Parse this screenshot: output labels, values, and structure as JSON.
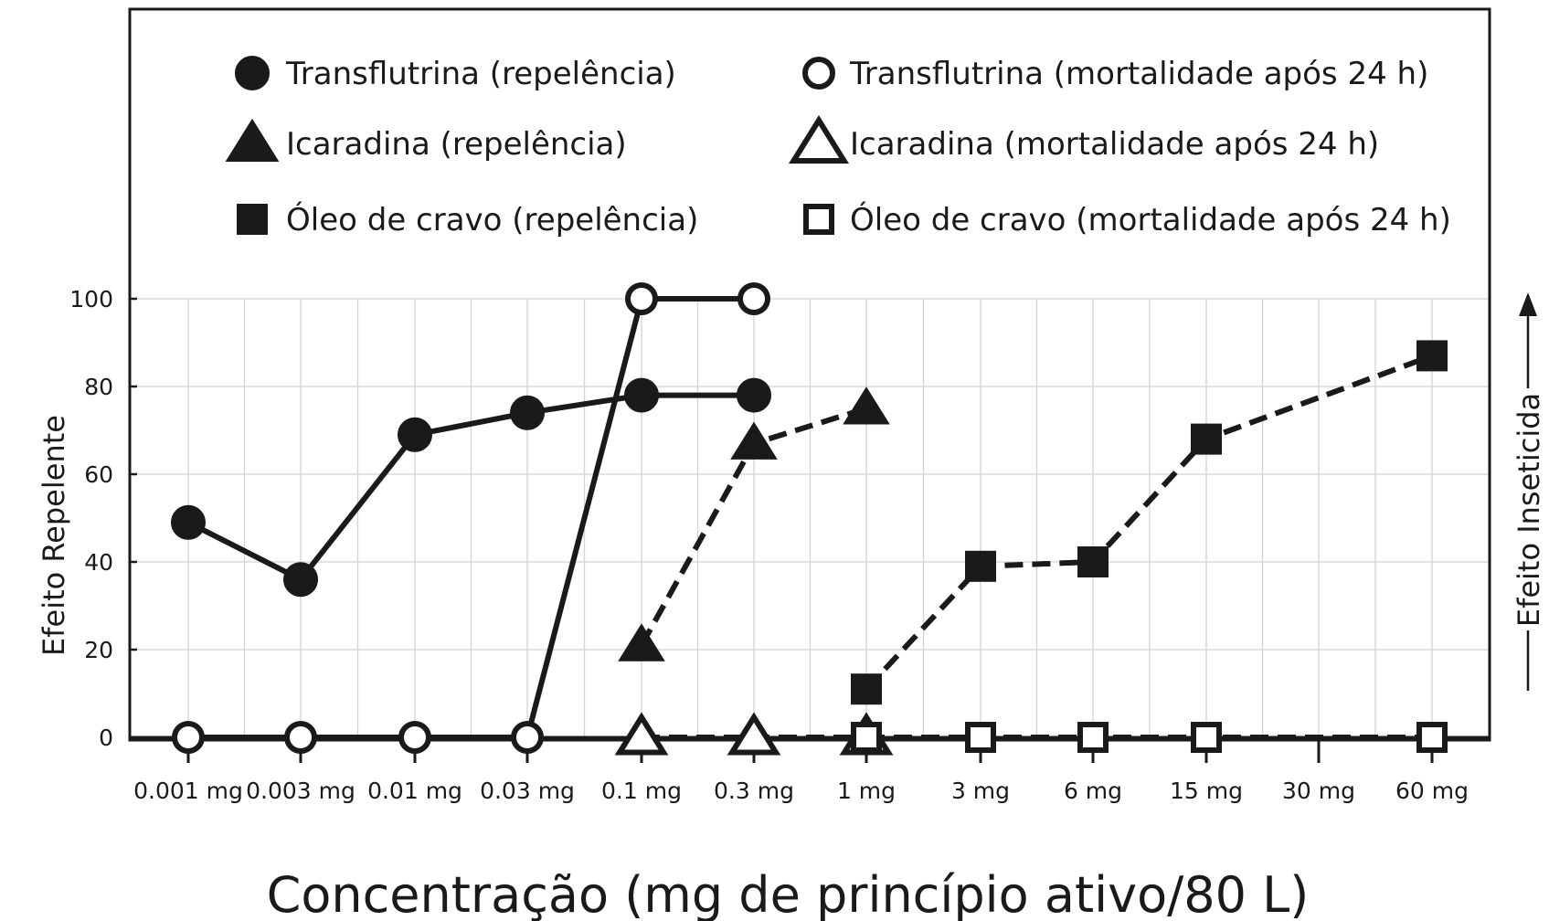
{
  "chart_data": {
    "type": "line",
    "xlabel": "Concentração (mg de princípio ativo/80 L)",
    "ylabel": "Efeito Repelente",
    "y2label": "Efeito Inseticida",
    "ylim": [
      0,
      100
    ],
    "yticks": [
      0,
      20,
      40,
      60,
      80,
      100
    ],
    "grid": true,
    "legend_position": "top",
    "categories": [
      "0.001 mg",
      "0.003 mg",
      "0.01 mg",
      "0.03 mg",
      "0.1 mg",
      "0.3 mg",
      "1 mg",
      "3 mg",
      "6 mg",
      "15 mg",
      "30 mg",
      "60 mg"
    ],
    "series": [
      {
        "name": "Transflutrina (repelência)",
        "marker": "circle",
        "filled": true,
        "dashed": false,
        "points": [
          {
            "x": "0.001 mg",
            "y": 49
          },
          {
            "x": "0.003 mg",
            "y": 36
          },
          {
            "x": "0.01 mg",
            "y": 69
          },
          {
            "x": "0.03 mg",
            "y": 74
          },
          {
            "x": "0.1 mg",
            "y": 78
          },
          {
            "x": "0.3 mg",
            "y": 78
          }
        ]
      },
      {
        "name": "Transflutrina (mortalidade após 24 h)",
        "marker": "circle",
        "filled": false,
        "dashed": false,
        "points": [
          {
            "x": "0.001 mg",
            "y": 0
          },
          {
            "x": "0.003 mg",
            "y": 0
          },
          {
            "x": "0.01 mg",
            "y": 0
          },
          {
            "x": "0.03 mg",
            "y": 0
          },
          {
            "x": "0.1 mg",
            "y": 100
          },
          {
            "x": "0.3 mg",
            "y": 100
          }
        ]
      },
      {
        "name": "Icaradina (repelência)",
        "marker": "triangle",
        "filled": true,
        "dashed": true,
        "points": [
          {
            "x": "0.1 mg",
            "y": 21
          },
          {
            "x": "0.3 mg",
            "y": 67
          },
          {
            "x": "1 mg",
            "y": 75
          }
        ]
      },
      {
        "name": "Icaradina (mortalidade após 24 h)",
        "marker": "triangle",
        "filled": false,
        "dashed": true,
        "points": [
          {
            "x": "0.1 mg",
            "y": 0
          },
          {
            "x": "0.3 mg",
            "y": 0
          },
          {
            "x": "1 mg",
            "y": 0
          }
        ]
      },
      {
        "name": "Óleo de cravo (repelência)",
        "marker": "square",
        "filled": true,
        "dashed": true,
        "points": [
          {
            "x": "1 mg",
            "y": 11
          },
          {
            "x": "3 mg",
            "y": 39
          },
          {
            "x": "6 mg",
            "y": 40
          },
          {
            "x": "15 mg",
            "y": 68
          },
          {
            "x": "60 mg",
            "y": 87
          }
        ]
      },
      {
        "name": "Óleo de cravo (mortalidade após 24 h)",
        "marker": "square",
        "filled": false,
        "dashed": true,
        "points": [
          {
            "x": "1 mg",
            "y": 0
          },
          {
            "x": "3 mg",
            "y": 0
          },
          {
            "x": "6 mg",
            "y": 0
          },
          {
            "x": "15 mg",
            "y": 0
          },
          {
            "x": "60 mg",
            "y": 0
          }
        ]
      }
    ]
  }
}
